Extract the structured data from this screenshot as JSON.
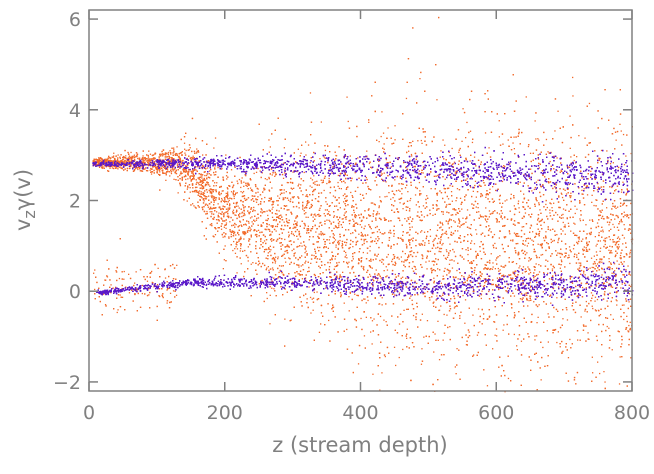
{
  "chart_data": {
    "type": "scatter",
    "title": "",
    "xlabel": "z (stream depth)",
    "ylabel": "v_z γ(v)",
    "ylabel_parts": {
      "main": "v",
      "sub": "z",
      "rest": "γ(v)"
    },
    "xlim": [
      0,
      800
    ],
    "ylim": [
      -2.2,
      6.2
    ],
    "x_ticks": [
      0,
      200,
      400,
      600,
      800
    ],
    "y_ticks": [
      -2,
      0,
      2,
      4,
      6
    ],
    "x_tick_labels": [
      "0",
      "200",
      "400",
      "600",
      "800"
    ],
    "y_tick_labels": [
      "−2",
      "0",
      "2",
      "4",
      "6"
    ],
    "grid": false,
    "legend": "none",
    "series": [
      {
        "color": "#f26a2a",
        "description_points": [
          {
            "x": 0,
            "y": 2.85
          },
          {
            "x": 100,
            "y": 2.85
          },
          {
            "x": 150,
            "y": 2.7
          },
          {
            "x": 200,
            "y": 1.7
          },
          {
            "x": 300,
            "y": 1.4
          },
          {
            "x": 400,
            "y": 1.3
          },
          {
            "x": 600,
            "y": 1.0
          },
          {
            "x": 800,
            "y": 0.9
          }
        ]
      },
      {
        "color": "#5a18c8",
        "upper_band": [
          {
            "x": 0,
            "y": 2.82
          },
          {
            "x": 200,
            "y": 2.83
          },
          {
            "x": 400,
            "y": 2.75
          },
          {
            "x": 600,
            "y": 2.65
          },
          {
            "x": 800,
            "y": 2.55
          }
        ],
        "lower_band": [
          {
            "x": 10,
            "y": -0.02
          },
          {
            "x": 150,
            "y": 0.2
          },
          {
            "x": 300,
            "y": 0.2
          },
          {
            "x": 500,
            "y": 0.1
          },
          {
            "x": 800,
            "y": 0.2
          }
        ]
      }
    ]
  }
}
